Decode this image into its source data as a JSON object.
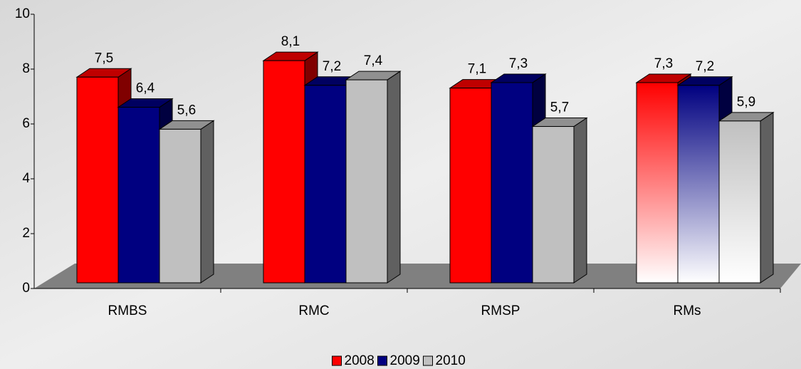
{
  "chart_data": {
    "type": "bar3d",
    "categories": [
      "RMBS",
      "RMC",
      "RMSP",
      "RMs"
    ],
    "series": [
      {
        "name": "2008",
        "color": "#ff0000",
        "values": [
          7.5,
          8.1,
          7.1,
          7.3
        ],
        "value_labels": [
          "7,5",
          "8,1",
          "7,1",
          "7,3"
        ]
      },
      {
        "name": "2009",
        "color": "#000080",
        "values": [
          6.4,
          7.2,
          7.3,
          7.2
        ],
        "value_labels": [
          "6,4",
          "7,2",
          "7,3",
          "7,2"
        ]
      },
      {
        "name": "2010",
        "color": "#c0c0c0",
        "values": [
          5.6,
          7.4,
          5.7,
          5.9
        ],
        "value_labels": [
          "5,6",
          "7,4",
          "5,7",
          "5,9"
        ]
      }
    ],
    "gradient_fill": "RMs",
    "ylim": [
      0,
      10
    ],
    "yticks": [
      0,
      2,
      4,
      6,
      8,
      10
    ],
    "legend": "bottom"
  }
}
